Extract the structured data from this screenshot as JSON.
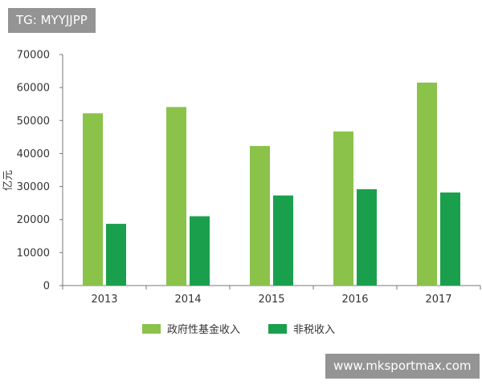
{
  "watermarks": {
    "top": "TG: MYYJJPP",
    "bottom": "www.mksportmax.com"
  },
  "colors": {
    "series_light": "#8bc34a",
    "series_dark": "#1aa04d",
    "axis": "#777777",
    "text": "#333333"
  },
  "chart_data": {
    "type": "bar",
    "title": "",
    "xlabel": "",
    "ylabel": "亿元",
    "categories": [
      "2013",
      "2014",
      "2015",
      "2016",
      "2017"
    ],
    "ylim": [
      0,
      70000
    ],
    "yticks": [
      0,
      10000,
      20000,
      30000,
      40000,
      50000,
      60000,
      70000
    ],
    "grid": false,
    "legend_position": "bottom",
    "series": [
      {
        "name": "政府性基金收入",
        "values": [
          52200,
          54100,
          42300,
          46700,
          61500
        ]
      },
      {
        "name": "非税收入",
        "values": [
          18700,
          21000,
          27300,
          29200,
          28200
        ]
      }
    ]
  }
}
